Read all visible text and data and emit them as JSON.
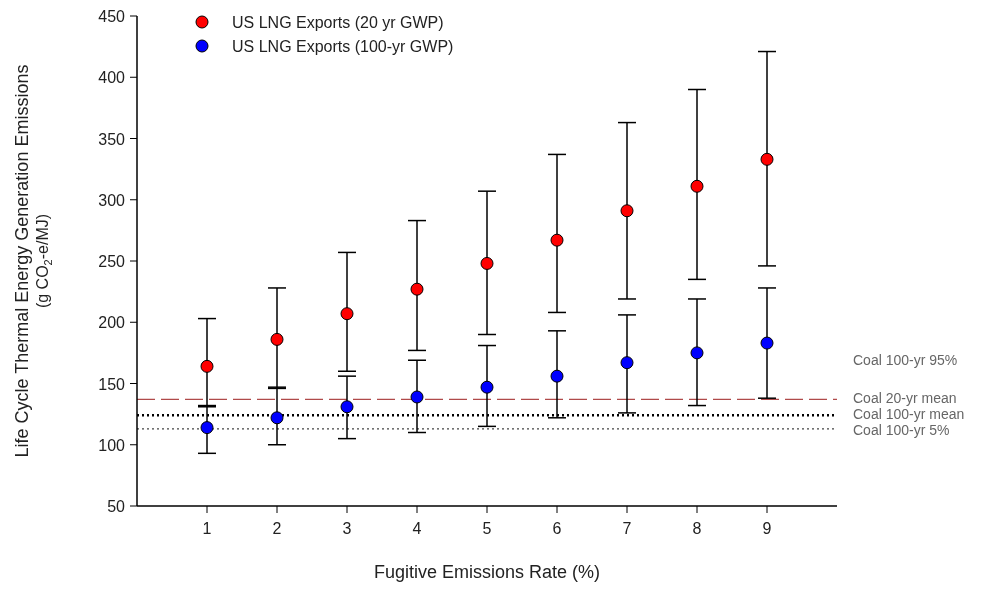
{
  "chart_data": {
    "type": "scatter",
    "xlabel": "Fugitive Emissions Rate (%)",
    "ylabel": "Life Cycle Thermal Energy Generation Emissions\n(g CO$_{2}$-e/MJ)",
    "x": [
      1,
      2,
      3,
      4,
      5,
      6,
      7,
      8,
      9
    ],
    "xlim": [
      0,
      10
    ],
    "xticks": [
      1,
      2,
      3,
      4,
      5,
      6,
      7,
      8,
      9
    ],
    "ylim": [
      50,
      450
    ],
    "yticks": [
      50,
      100,
      150,
      200,
      250,
      300,
      350,
      400,
      450
    ],
    "series": [
      {
        "name": "US LNG Exports (20 yr GWP)",
        "color": "#ff0000",
        "values": [
          164,
          186,
          207,
          227,
          248,
          267,
          291,
          311,
          333
        ],
        "errors": [
          [
            131,
            203
          ],
          [
            146,
            228
          ],
          [
            160,
            257
          ],
          [
            177,
            283
          ],
          [
            190,
            307
          ],
          [
            208,
            337
          ],
          [
            219,
            363
          ],
          [
            235,
            390
          ],
          [
            246,
            421
          ]
        ]
      },
      {
        "name": "US LNG Exports (100-yr GWP)",
        "color": "#0000ff",
        "values": [
          114,
          122,
          131,
          139,
          147,
          156,
          167,
          175,
          183
        ],
        "errors": [
          [
            93,
            132
          ],
          [
            100,
            147
          ],
          [
            105,
            156
          ],
          [
            110,
            169
          ],
          [
            115,
            181
          ],
          [
            122,
            193
          ],
          [
            126,
            206
          ],
          [
            132,
            219
          ],
          [
            138,
            228
          ]
        ]
      }
    ],
    "ref_lines": [
      {
        "axis": "y",
        "value": 137,
        "label": "Coal 20-yr mean",
        "color": "#b04a4a",
        "line_style": "dashed"
      },
      {
        "axis": "y",
        "value": 124,
        "label": "Coal 100-yr mean",
        "color": "#000000",
        "line_style": "dotted"
      },
      {
        "axis": "y",
        "value": 113,
        "label": "Coal 100-yr 5%",
        "color": "#444444",
        "line_style": "dotted"
      }
    ],
    "annotations": [
      "Coal 100-yr 95%"
    ],
    "legend": "top left",
    "marker": "circle",
    "grid": false
  }
}
